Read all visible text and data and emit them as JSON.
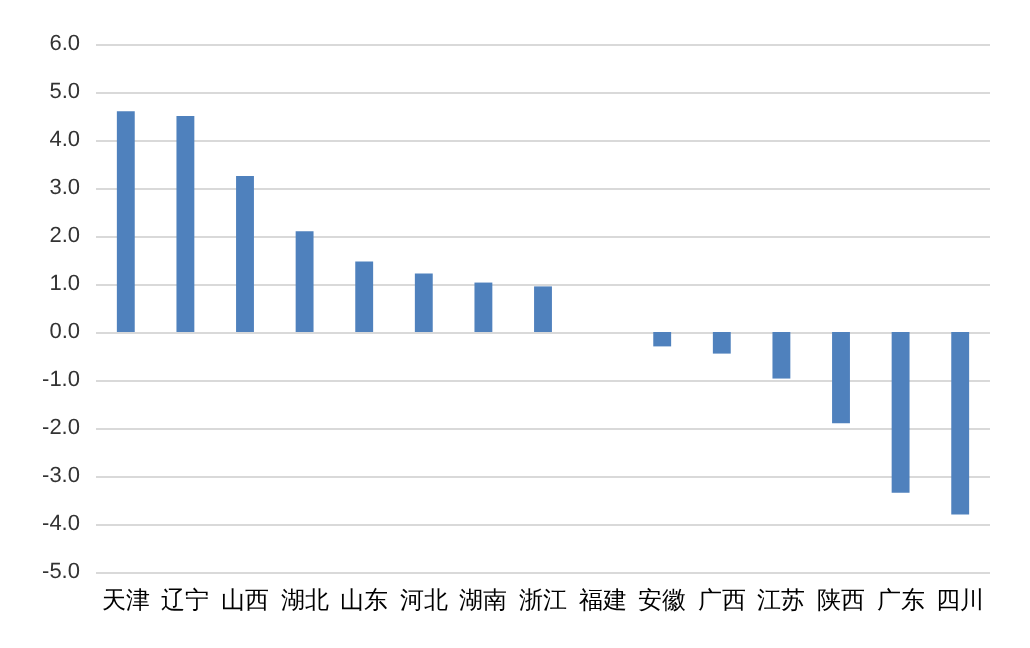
{
  "chart_data": {
    "type": "bar",
    "categories": [
      "天津",
      "辽宁",
      "山西",
      "湖北",
      "山东",
      "河北",
      "湖南",
      "浙江",
      "福建",
      "安徽",
      "广西",
      "江苏",
      "陕西",
      "广东",
      "四川"
    ],
    "values": [
      4.6,
      4.5,
      3.25,
      2.1,
      1.47,
      1.22,
      1.03,
      0.95,
      0,
      -0.3,
      -0.45,
      -0.97,
      -1.9,
      -3.35,
      -3.8
    ],
    "color": "#4f81bd",
    "ylim": [
      -5,
      6
    ],
    "yticks": [
      {
        "value": -5,
        "label": "-5.0"
      },
      {
        "value": -4,
        "label": "-4.0"
      },
      {
        "value": -3,
        "label": "-3.0"
      },
      {
        "value": -2,
        "label": "-2.0"
      },
      {
        "value": -1,
        "label": "-1.0"
      },
      {
        "value": 0,
        "label": "0.0"
      },
      {
        "value": 1,
        "label": "1.0"
      },
      {
        "value": 2,
        "label": "2.0"
      },
      {
        "value": 3,
        "label": "3.0"
      },
      {
        "value": 4,
        "label": "4.0"
      },
      {
        "value": 5,
        "label": "5.0"
      },
      {
        "value": 6,
        "label": "6.0"
      }
    ],
    "grid": "y"
  }
}
